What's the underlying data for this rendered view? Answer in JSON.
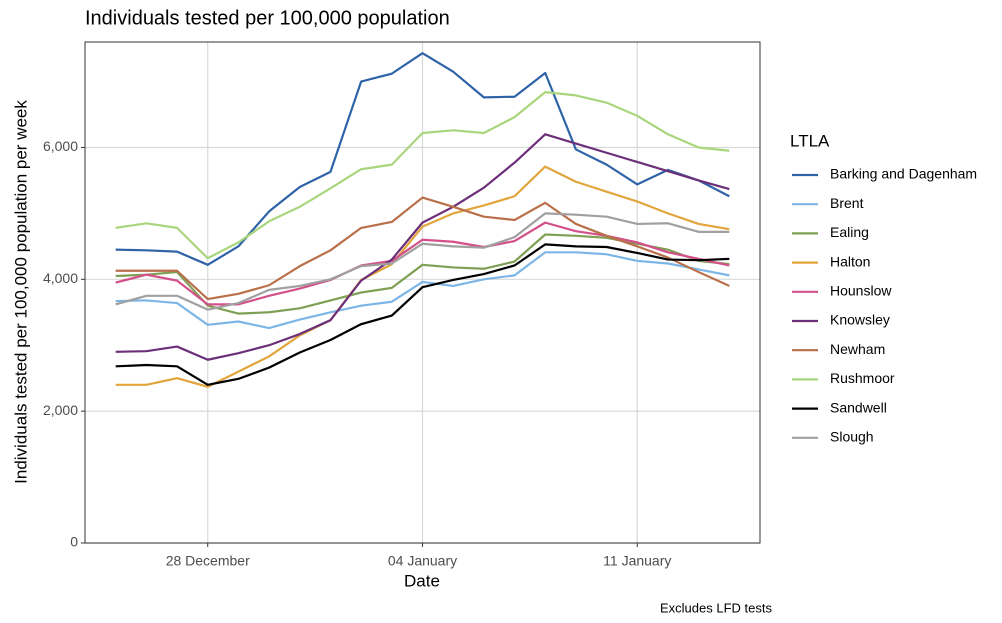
{
  "chart_data": {
    "type": "line",
    "title": "Individuals tested per 100,000 population",
    "x_label": "Date",
    "y_label": "Individuals tested per 100,000 population per week",
    "caption": "Excludes LFD tests",
    "legend_title": "LTLA",
    "legend": "right",
    "grid": true,
    "categories": [
      null,
      null,
      null,
      "28 December",
      null,
      null,
      null,
      null,
      null,
      null,
      "04 January",
      null,
      null,
      null,
      null,
      null,
      null,
      "11 January",
      null,
      null,
      null
    ],
    "ylim": [
      0,
      7600
    ],
    "yticks": [
      0,
      {
        "value": 2000,
        "label": "2,000"
      },
      {
        "value": 4000,
        "label": "4,000"
      },
      {
        "value": 6000,
        "label": "6,000"
      }
    ],
    "series": [
      {
        "name": "Barking and Dagenham",
        "color": "#2f63a7",
        "values": [
          4450,
          4440,
          4420,
          4220,
          4500,
          5030,
          5400,
          5630,
          7000,
          7120,
          7430,
          7150,
          6760,
          6770,
          7130,
          5970,
          5740,
          5440,
          5660,
          5500,
          5260
        ]
      },
      {
        "name": "Brent",
        "color": "#7db6e6",
        "values": [
          3670,
          3680,
          3640,
          3310,
          3360,
          3260,
          3390,
          3500,
          3600,
          3660,
          3960,
          3900,
          4000,
          4060,
          4410,
          4410,
          4380,
          4280,
          4240,
          4150,
          4060
        ]
      },
      {
        "name": "Ealing",
        "color": "#7f9f55",
        "values": [
          4050,
          4070,
          4110,
          3600,
          3480,
          3500,
          3560,
          3680,
          3800,
          3870,
          4220,
          4180,
          4160,
          4270,
          4680,
          4660,
          4630,
          4540,
          4450,
          4280,
          4230
        ]
      },
      {
        "name": "Halton",
        "color": "#e2a53c",
        "values": [
          2400,
          2400,
          2500,
          2370,
          2600,
          2830,
          3150,
          3380,
          3990,
          4230,
          4800,
          5000,
          5120,
          5260,
          5710,
          5480,
          5330,
          5180,
          5000,
          4840,
          4760
        ]
      },
      {
        "name": "Hounslow",
        "color": "#d4508a",
        "values": [
          3950,
          4070,
          3980,
          3620,
          3620,
          3750,
          3860,
          3990,
          4210,
          4280,
          4600,
          4570,
          4490,
          4580,
          4860,
          4730,
          4660,
          4560,
          4410,
          4310,
          4210
        ]
      },
      {
        "name": "Knowsley",
        "color": "#6c2f7a",
        "values": [
          2900,
          2910,
          2980,
          2780,
          2880,
          3000,
          3170,
          3380,
          3980,
          4300,
          4860,
          5100,
          5390,
          5770,
          6200,
          6060,
          5920,
          5780,
          5640,
          5500,
          5370
        ]
      },
      {
        "name": "Newham",
        "color": "#b9704a",
        "values": [
          4130,
          4130,
          4130,
          3700,
          3780,
          3910,
          4200,
          4440,
          4780,
          4870,
          5240,
          5100,
          4950,
          4900,
          5160,
          4840,
          4660,
          4500,
          4330,
          4110,
          3900
        ]
      },
      {
        "name": "Rushmoor",
        "color": "#a9d67c",
        "values": [
          4780,
          4850,
          4780,
          4320,
          4560,
          4880,
          5100,
          5380,
          5670,
          5740,
          6220,
          6260,
          6220,
          6460,
          6840,
          6790,
          6680,
          6480,
          6200,
          6000,
          5950
        ]
      },
      {
        "name": "Sandwell",
        "color": "#000000",
        "values": [
          2680,
          2700,
          2680,
          2400,
          2490,
          2660,
          2890,
          3080,
          3320,
          3450,
          3880,
          3990,
          4080,
          4210,
          4530,
          4500,
          4490,
          4400,
          4300,
          4290,
          4310
        ]
      },
      {
        "name": "Slough",
        "color": "#a0a0a0",
        "values": [
          3620,
          3750,
          3750,
          3540,
          3640,
          3840,
          3900,
          4000,
          4200,
          4240,
          4540,
          4500,
          4480,
          4640,
          5000,
          4980,
          4950,
          4840,
          4850,
          4720,
          4720
        ]
      }
    ]
  }
}
